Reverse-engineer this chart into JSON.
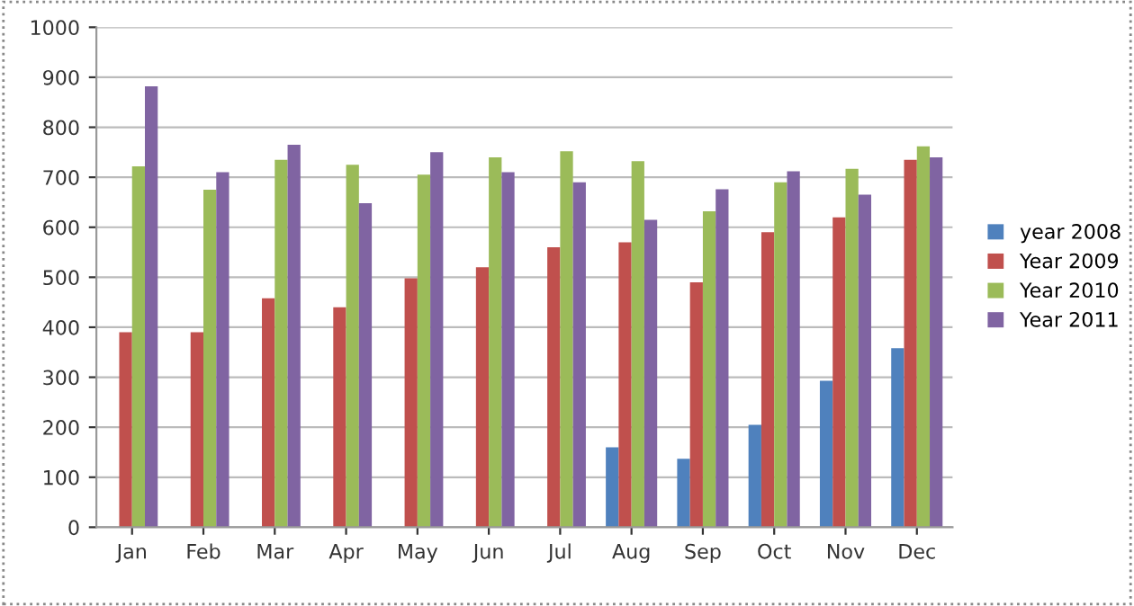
{
  "chart_data": {
    "type": "bar",
    "categories": [
      "Jan",
      "Feb",
      "Mar",
      "Apr",
      "May",
      "Jun",
      "Jul",
      "Aug",
      "Sep",
      "Oct",
      "Nov",
      "Dec"
    ],
    "series": [
      {
        "name": "year 2008",
        "color": "#4f81bd",
        "values": [
          null,
          null,
          null,
          null,
          null,
          null,
          null,
          160,
          137,
          205,
          293,
          358
        ]
      },
      {
        "name": "Year 2009",
        "color": "#c0504d",
        "values": [
          390,
          390,
          458,
          440,
          498,
          520,
          560,
          570,
          490,
          590,
          620,
          735
        ]
      },
      {
        "name": "Year 2010",
        "color": "#9bbb59",
        "values": [
          722,
          675,
          735,
          725,
          705,
          740,
          752,
          732,
          632,
          690,
          717,
          762
        ]
      },
      {
        "name": "Year 2011",
        "color": "#8064a2",
        "values": [
          882,
          710,
          765,
          648,
          750,
          710,
          690,
          615,
          676,
          712,
          665,
          740
        ]
      }
    ],
    "ylim": [
      0,
      1000
    ],
    "yticks": [
      0,
      100,
      200,
      300,
      400,
      500,
      600,
      700,
      800,
      900,
      1000
    ],
    "grid": "y",
    "legend": "right"
  }
}
